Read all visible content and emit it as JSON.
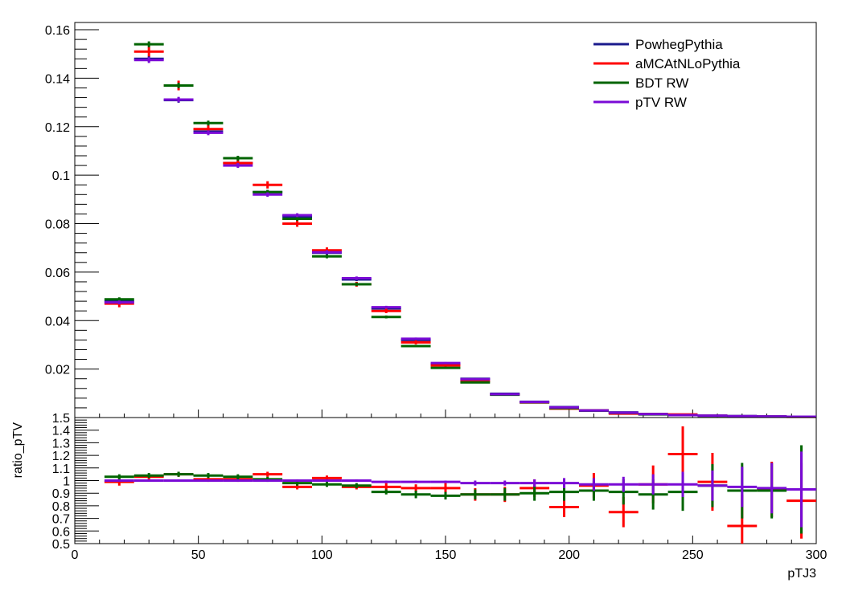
{
  "chart_data": [
    {
      "type": "scatter",
      "panel": "main",
      "xlabel": "",
      "ylabel": "",
      "xlim": [
        0,
        300
      ],
      "ylim": [
        0,
        0.163
      ],
      "y_ticks": [
        0.02,
        0.04,
        0.06,
        0.08,
        0.1,
        0.12,
        0.14,
        0.16
      ],
      "y_tick_labels": [
        "0.02",
        "0.04",
        "0.06",
        "0.08",
        "0.1",
        "0.12",
        "0.14",
        "0.16"
      ],
      "bin_width": 12,
      "x": [
        18,
        30,
        42,
        54,
        66,
        78,
        90,
        102,
        114,
        126,
        138,
        150,
        162,
        174,
        186,
        198,
        210,
        222,
        234,
        246,
        258,
        270,
        282,
        294
      ],
      "legend_position": "top-right",
      "series": [
        {
          "name": "PowhegPythia",
          "color": "#1a1a8c",
          "values": [
            0.048,
            0.148,
            0.131,
            0.118,
            0.105,
            0.093,
            0.083,
            0.068,
            0.057,
            0.045,
            0.032,
            0.022,
            0.016,
            0.0098,
            0.0065,
            0.0043,
            0.003,
            0.0021,
            0.0015,
            0.0011,
            0.0008,
            0.0006,
            0.00045,
            0.00035
          ],
          "errors": [
            0.0008,
            0.0012,
            0.0011,
            0.001,
            0.001,
            0.0009,
            0.0008,
            0.0008,
            0.0007,
            0.0006,
            0.0005,
            0.0004,
            0.0003,
            0.0003,
            0.0002,
            0.0002,
            0.00015,
            0.00012,
            0.0001,
            0.0001,
            8e-05,
            7e-05,
            6e-05,
            5e-05
          ]
        },
        {
          "name": "aMCAtNLoPythia",
          "color": "#ff0000",
          "values": [
            0.047,
            0.151,
            0.137,
            0.119,
            0.105,
            0.096,
            0.08,
            0.069,
            0.055,
            0.044,
            0.031,
            0.0215,
            0.015,
            0.0095,
            0.0062,
            0.0037,
            0.0029,
            0.0016,
            0.0014,
            0.0013,
            0.0008,
            0.0004,
            0.0004,
            0.0003
          ],
          "errors": [
            0.0015,
            0.002,
            0.002,
            0.0018,
            0.0016,
            0.0015,
            0.0013,
            0.0012,
            0.001,
            0.0009,
            0.0008,
            0.0006,
            0.0005,
            0.0004,
            0.0003,
            0.0003,
            0.0003,
            0.0002,
            0.0002,
            0.0002,
            0.0001,
            0.0001,
            0.0001,
            0.0001
          ]
        },
        {
          "name": "BDT RW",
          "color": "#006400",
          "values": [
            0.0488,
            0.154,
            0.137,
            0.1215,
            0.107,
            0.093,
            0.082,
            0.0665,
            0.055,
            0.0415,
            0.0295,
            0.0205,
            0.0145,
            0.0094,
            0.0063,
            0.0039,
            0.0028,
            0.0019,
            0.0013,
            0.001,
            0.00075,
            0.00055,
            0.00042,
            0.00032
          ],
          "errors": [
            0.0008,
            0.0012,
            0.0011,
            0.001,
            0.001,
            0.0009,
            0.0008,
            0.0008,
            0.0007,
            0.0006,
            0.0005,
            0.0004,
            0.0003,
            0.0003,
            0.0002,
            0.0002,
            0.00015,
            0.00012,
            0.0001,
            0.0001,
            8e-05,
            7e-05,
            6e-05,
            5e-05
          ]
        },
        {
          "name": "pTV RW",
          "color": "#7a0ad6",
          "values": [
            0.0475,
            0.1475,
            0.1312,
            0.1175,
            0.104,
            0.092,
            0.0835,
            0.0682,
            0.0575,
            0.0455,
            0.0325,
            0.0225,
            0.0158,
            0.0096,
            0.0064,
            0.0042,
            0.0029,
            0.002,
            0.0014,
            0.001,
            0.00078,
            0.00058,
            0.00044,
            0.00034
          ],
          "errors": [
            0.0008,
            0.0012,
            0.0011,
            0.001,
            0.001,
            0.0009,
            0.0008,
            0.0008,
            0.0007,
            0.0006,
            0.0005,
            0.0004,
            0.0003,
            0.0003,
            0.0002,
            0.0002,
            0.00015,
            0.00012,
            0.0001,
            0.0001,
            8e-05,
            7e-05,
            6e-05,
            5e-05
          ]
        }
      ]
    },
    {
      "type": "scatter",
      "panel": "ratio",
      "xlabel": "pTJ3",
      "ylabel": "ratio_pTV",
      "xlim": [
        0,
        300
      ],
      "ylim": [
        0.5,
        1.5
      ],
      "x_ticks": [
        0,
        50,
        100,
        150,
        200,
        250,
        300
      ],
      "x_tick_labels": [
        "0",
        "50",
        "100",
        "150",
        "200",
        "250",
        "300"
      ],
      "y_ticks": [
        0.5,
        0.6,
        0.7,
        0.8,
        0.9,
        1,
        1.1,
        1.2,
        1.3,
        1.4,
        1.5
      ],
      "y_tick_labels": [
        "0.5",
        "0.6",
        "0.7",
        "0.8",
        "0.9",
        "1",
        "1.1",
        "1.2",
        "1.3",
        "1.4",
        "1.5"
      ],
      "bin_width": 12,
      "x": [
        18,
        30,
        42,
        54,
        66,
        78,
        90,
        102,
        114,
        126,
        138,
        150,
        162,
        174,
        186,
        198,
        210,
        222,
        234,
        246,
        258,
        270,
        282,
        294
      ],
      "series": [
        {
          "color": "#ff0000",
          "values": [
            0.99,
            1.03,
            1.05,
            1.01,
            1.01,
            1.05,
            0.95,
            1.02,
            0.95,
            0.95,
            0.94,
            0.94,
            0.89,
            0.89,
            0.94,
            0.79,
            0.96,
            0.75,
            0.97,
            1.21,
            0.99,
            0.64,
            0.93,
            0.84
          ],
          "errors": [
            0.03,
            0.02,
            0.02,
            0.02,
            0.02,
            0.02,
            0.02,
            0.02,
            0.02,
            0.03,
            0.03,
            0.04,
            0.05,
            0.06,
            0.07,
            0.08,
            0.1,
            0.12,
            0.15,
            0.22,
            0.23,
            0.25,
            0.22,
            0.3
          ]
        },
        {
          "color": "#006400",
          "values": [
            1.03,
            1.04,
            1.05,
            1.04,
            1.03,
            1.01,
            0.98,
            0.97,
            0.96,
            0.91,
            0.89,
            0.88,
            0.89,
            0.89,
            0.9,
            0.91,
            0.92,
            0.91,
            0.89,
            0.91,
            0.96,
            0.92,
            0.92,
            0.93
          ],
          "errors": [
            0.02,
            0.02,
            0.02,
            0.02,
            0.02,
            0.02,
            0.02,
            0.02,
            0.02,
            0.02,
            0.03,
            0.03,
            0.04,
            0.05,
            0.06,
            0.07,
            0.08,
            0.1,
            0.12,
            0.15,
            0.17,
            0.22,
            0.22,
            0.35
          ]
        },
        {
          "color": "#7a0ad6",
          "values": [
            1.0,
            1.0,
            1.0,
            1.0,
            1.0,
            1.0,
            1.0,
            1.0,
            1.0,
            0.99,
            0.99,
            0.99,
            0.98,
            0.98,
            0.98,
            0.98,
            0.97,
            0.97,
            0.97,
            0.97,
            0.96,
            0.95,
            0.94,
            0.93
          ],
          "errors": [
            0.01,
            0.01,
            0.01,
            0.01,
            0.01,
            0.01,
            0.01,
            0.01,
            0.01,
            0.01,
            0.01,
            0.01,
            0.02,
            0.02,
            0.03,
            0.04,
            0.05,
            0.06,
            0.08,
            0.1,
            0.12,
            0.16,
            0.2,
            0.3
          ]
        }
      ]
    }
  ]
}
